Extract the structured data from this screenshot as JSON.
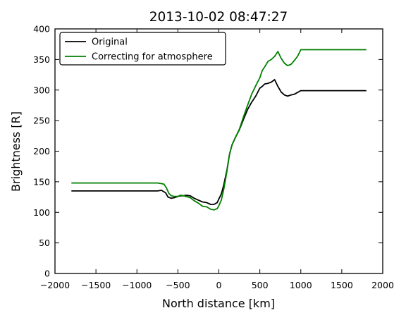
{
  "chart_data": {
    "type": "line",
    "title": "2013-10-02 08:47:27",
    "xlabel": "North distance [km]",
    "ylabel": "Brightness [R]",
    "xlim": [
      -2000,
      2000
    ],
    "ylim": [
      0,
      400
    ],
    "xticks": [
      -2000,
      -1500,
      -1000,
      -500,
      0,
      500,
      1000,
      1500,
      2000
    ],
    "xtick_labels": [
      "−2000",
      "−1500",
      "−1000",
      "−500",
      "0",
      "500",
      "1000",
      "1500",
      "2000"
    ],
    "yticks": [
      0,
      50,
      100,
      150,
      200,
      250,
      300,
      350,
      400
    ],
    "ytick_labels": [
      "0",
      "50",
      "100",
      "150",
      "200",
      "250",
      "300",
      "350",
      "400"
    ],
    "grid": false,
    "legend_position": "top-left",
    "series": [
      {
        "name": "Original",
        "color": "#000000",
        "x": [
          -1800,
          -750,
          -700,
          -650,
          -620,
          -580,
          -540,
          -500,
          -470,
          -430,
          -400,
          -350,
          -300,
          -250,
          -200,
          -150,
          -100,
          -60,
          -20,
          0,
          30,
          60,
          100,
          130,
          160,
          200,
          250,
          300,
          350,
          400,
          450,
          500,
          530,
          560,
          600,
          640,
          680,
          720,
          760,
          800,
          840,
          880,
          920,
          960,
          1000,
          1800
        ],
        "y": [
          135,
          135,
          136,
          132,
          125,
          123,
          124,
          126,
          127,
          127,
          128,
          127,
          123,
          120,
          117,
          116,
          113,
          113,
          116,
          122,
          130,
          145,
          170,
          195,
          210,
          222,
          235,
          252,
          268,
          280,
          290,
          303,
          306,
          310,
          311,
          313,
          317,
          306,
          297,
          292,
          290,
          292,
          293,
          296,
          299,
          299
        ]
      },
      {
        "name": "Correcting for atmosphere",
        "color": "#008000",
        "x": [
          -1800,
          -750,
          -700,
          -670,
          -640,
          -610,
          -580,
          -540,
          -500,
          -470,
          -430,
          -400,
          -350,
          -300,
          -250,
          -200,
          -150,
          -100,
          -60,
          -20,
          0,
          30,
          60,
          100,
          130,
          160,
          200,
          250,
          300,
          350,
          400,
          450,
          500,
          530,
          560,
          600,
          640,
          680,
          720,
          760,
          800,
          840,
          880,
          920,
          960,
          1000,
          1800
        ],
        "y": [
          148,
          148,
          147,
          146,
          140,
          131,
          127,
          126,
          126,
          128,
          127,
          126,
          124,
          119,
          115,
          110,
          109,
          105,
          104,
          106,
          111,
          120,
          138,
          168,
          195,
          210,
          222,
          236,
          256,
          275,
          293,
          307,
          320,
          332,
          338,
          347,
          350,
          355,
          363,
          352,
          344,
          340,
          342,
          348,
          355,
          366,
          366
        ]
      }
    ]
  }
}
